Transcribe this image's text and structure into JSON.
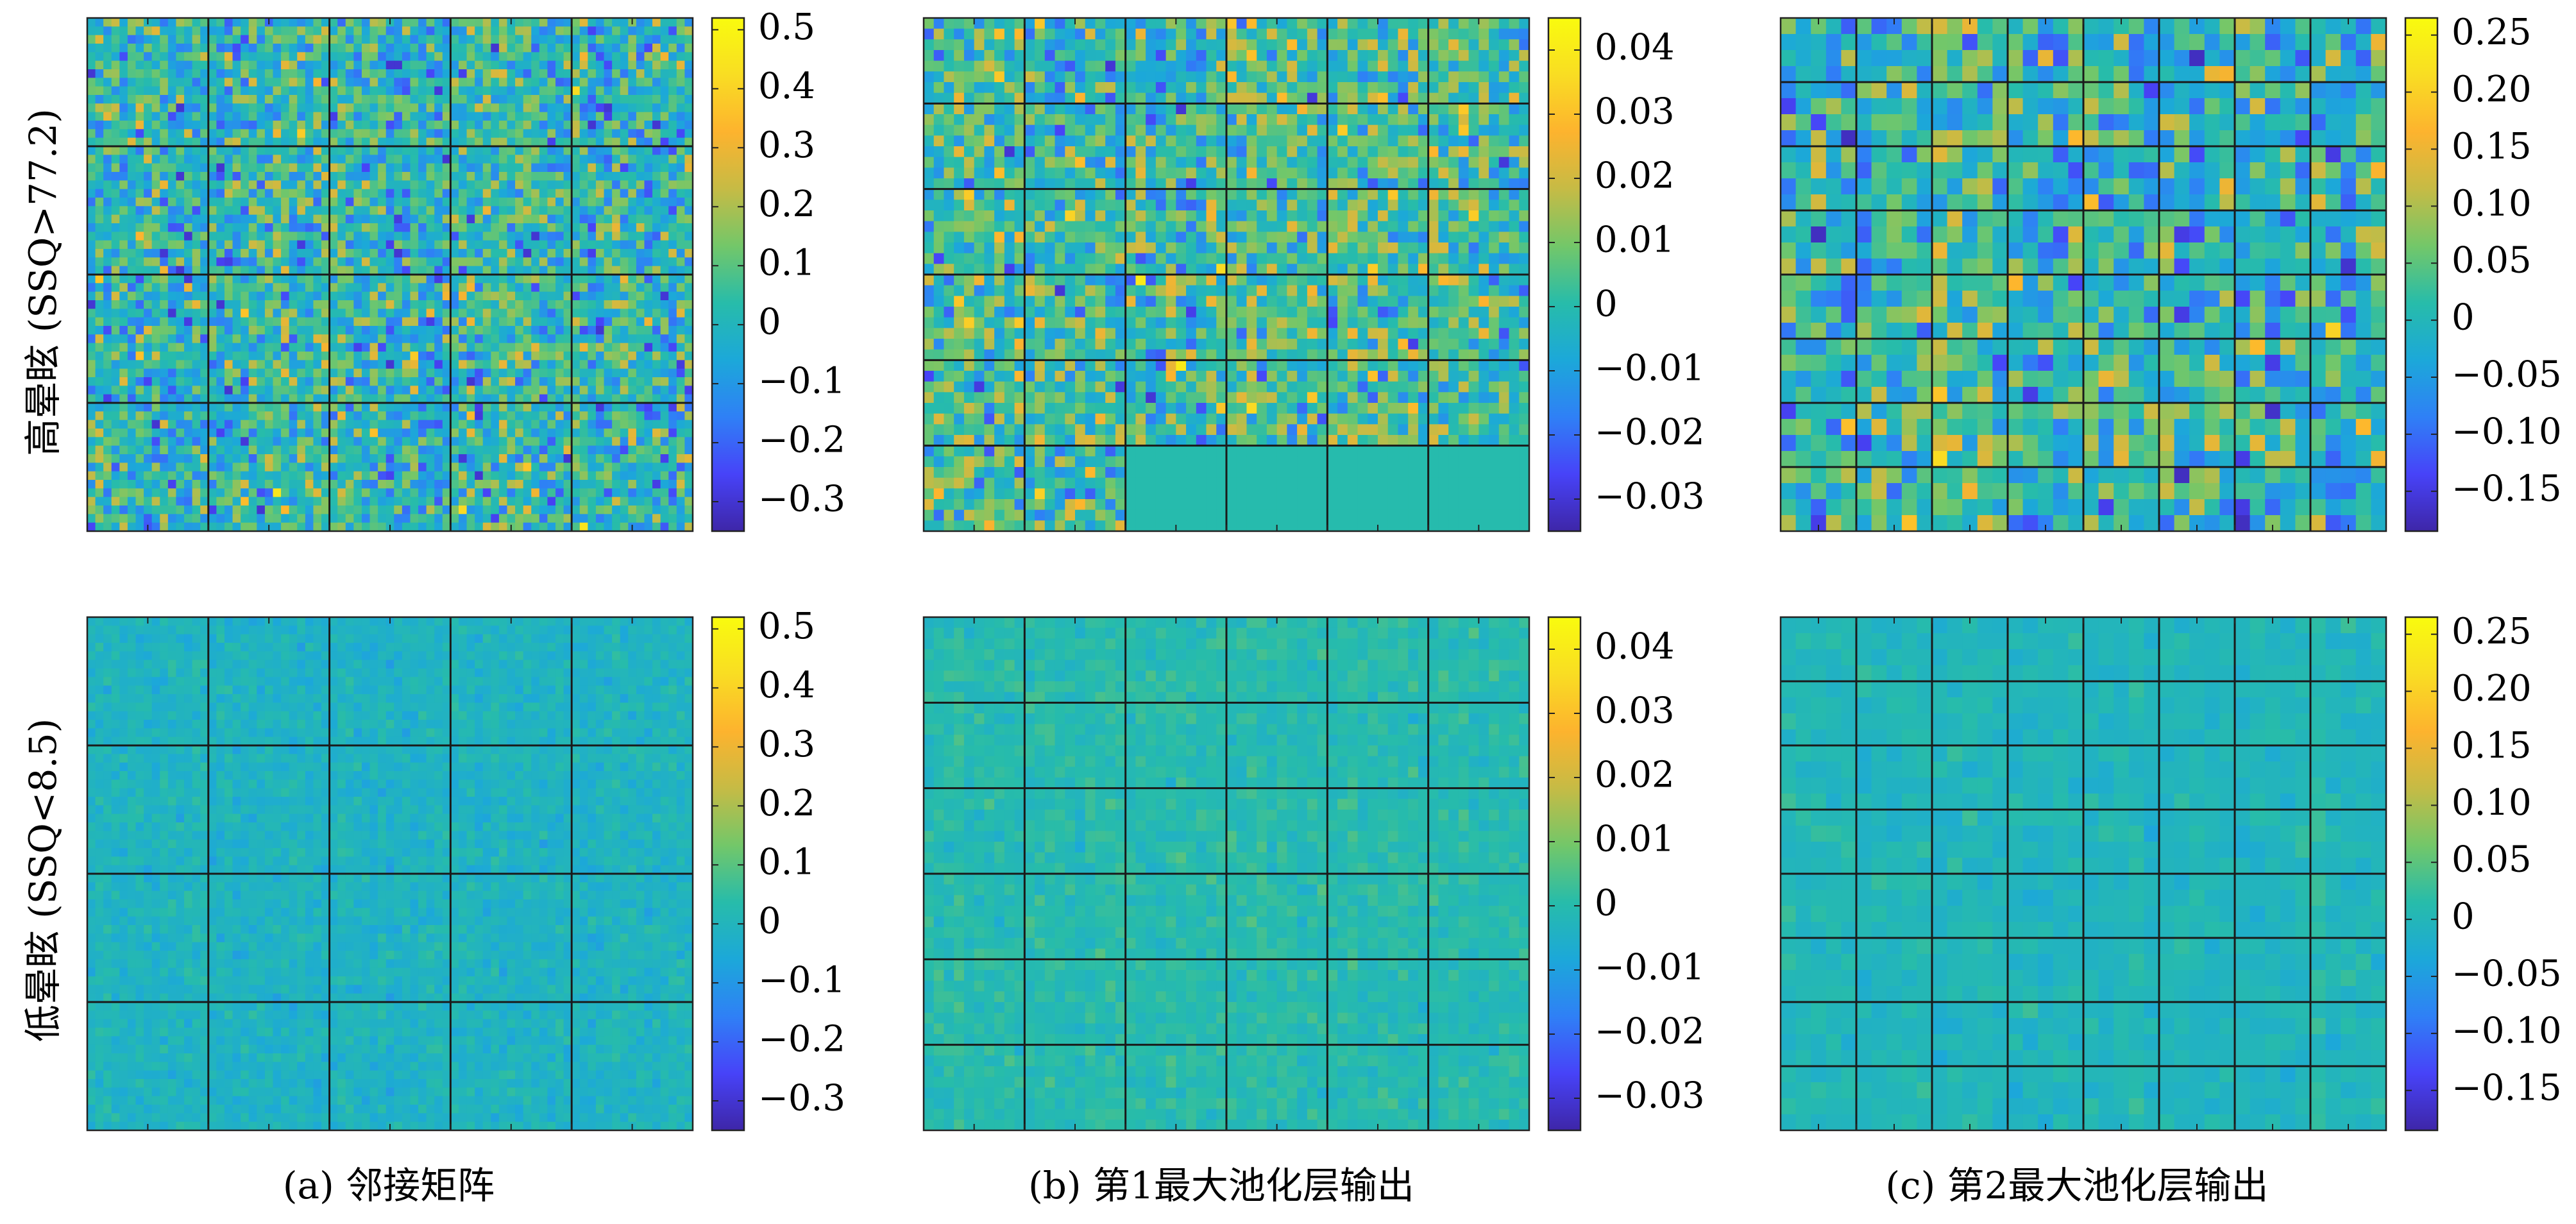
{
  "row_labels": [
    "高晕眩 (SSQ>77.2)",
    "低晕眩 (SSQ<8.5)"
  ],
  "captions": [
    "(a) 邻接矩阵",
    "(b) 第1最大池化层输出",
    "(c) 第2最大池化层输出"
  ],
  "colormap": [
    "#3e26a8",
    "#4743f8",
    "#2f80f6",
    "#1ca8d9",
    "#27bcaa",
    "#73c769",
    "#c6bb45",
    "#fdb32e",
    "#f9dd23",
    "#f9fb0e"
  ],
  "chart_data": [
    {
      "type": "heatmap",
      "row": "高晕眩 (SSQ>77.2)",
      "caption": "(a) 邻接矩阵",
      "blocks": [
        5,
        4
      ],
      "cells_per_block": [
        15,
        15
      ],
      "clim": [
        -0.35,
        0.52
      ],
      "colorbar_ticks": [
        0.5,
        0.4,
        0.3,
        0.2,
        0.1,
        0,
        -0.1,
        -0.2,
        -0.3
      ],
      "colorbar_labels": [
        "0.5",
        "0.4",
        "0.3",
        "0.2",
        "0.1",
        "0",
        "−0.1",
        "−0.2",
        "−0.3"
      ],
      "value_range_shown": [
        -0.3,
        0.45
      ]
    },
    {
      "type": "heatmap",
      "row": "高晕眩 (SSQ>77.2)",
      "caption": "(b) 第1最大池化层输出",
      "blocks": [
        6,
        6
      ],
      "cells_per_block": [
        10,
        8
      ],
      "empty_blocks": [
        [
          5,
          2
        ],
        [
          5,
          3
        ],
        [
          5,
          4
        ],
        [
          5,
          5
        ]
      ],
      "clim": [
        -0.035,
        0.045
      ],
      "colorbar_ticks": [
        0.04,
        0.03,
        0.02,
        0.01,
        0,
        -0.01,
        -0.02,
        -0.03
      ],
      "colorbar_labels": [
        "0.04",
        "0.03",
        "0.02",
        "0.01",
        "0",
        "−0.01",
        "−0.02",
        "−0.03"
      ],
      "value_range_shown": [
        -0.03,
        0.04
      ]
    },
    {
      "type": "heatmap",
      "row": "高晕眩 (SSQ>77.2)",
      "caption": "(c) 第2最大池化层输出",
      "blocks": [
        8,
        8
      ],
      "cells_per_block": [
        5,
        4
      ],
      "clim": [
        -0.185,
        0.265
      ],
      "colorbar_ticks": [
        0.25,
        0.2,
        0.15,
        0.1,
        0.05,
        0,
        -0.05,
        -0.1,
        -0.15
      ],
      "colorbar_labels": [
        "0.25",
        "0.20",
        "0.15",
        "0.10",
        "0.05",
        "0",
        "−0.05",
        "−0.10",
        "−0.15"
      ],
      "value_range_shown": [
        -0.17,
        0.24
      ]
    },
    {
      "type": "heatmap",
      "row": "低晕眩 (SSQ<8.5)",
      "caption": "(a) 邻接矩阵",
      "blocks": [
        5,
        4
      ],
      "cells_per_block": [
        15,
        15
      ],
      "clim": [
        -0.35,
        0.52
      ],
      "colorbar_ticks": [
        0.5,
        0.4,
        0.3,
        0.2,
        0.1,
        0,
        -0.1,
        -0.2,
        -0.3
      ],
      "colorbar_labels": [
        "0.5",
        "0.4",
        "0.3",
        "0.2",
        "0.1",
        "0",
        "−0.1",
        "−0.2",
        "−0.3"
      ],
      "value_range_shown": [
        -0.12,
        0.05
      ]
    },
    {
      "type": "heatmap",
      "row": "低晕眩 (SSQ<8.5)",
      "caption": "(b) 第1最大池化层输出",
      "blocks": [
        6,
        6
      ],
      "cells_per_block": [
        10,
        8
      ],
      "clim": [
        -0.035,
        0.045
      ],
      "colorbar_ticks": [
        0.04,
        0.03,
        0.02,
        0.01,
        0,
        -0.01,
        -0.02,
        -0.03
      ],
      "colorbar_labels": [
        "0.04",
        "0.03",
        "0.02",
        "0.01",
        "0",
        "−0.01",
        "−0.02",
        "−0.03"
      ],
      "value_range_shown": [
        -0.008,
        0.006
      ]
    },
    {
      "type": "heatmap",
      "row": "低晕眩 (SSQ<8.5)",
      "caption": "(c) 第2最大池化层输出",
      "blocks": [
        8,
        8
      ],
      "cells_per_block": [
        5,
        4
      ],
      "clim": [
        -0.185,
        0.265
      ],
      "colorbar_ticks": [
        0.25,
        0.2,
        0.15,
        0.1,
        0.05,
        0,
        -0.05,
        -0.1,
        -0.15
      ],
      "colorbar_labels": [
        "0.25",
        "0.20",
        "0.15",
        "0.10",
        "0.05",
        "0",
        "−0.05",
        "−0.10",
        "−0.15"
      ],
      "value_range_shown": [
        -0.04,
        0.03
      ]
    }
  ]
}
